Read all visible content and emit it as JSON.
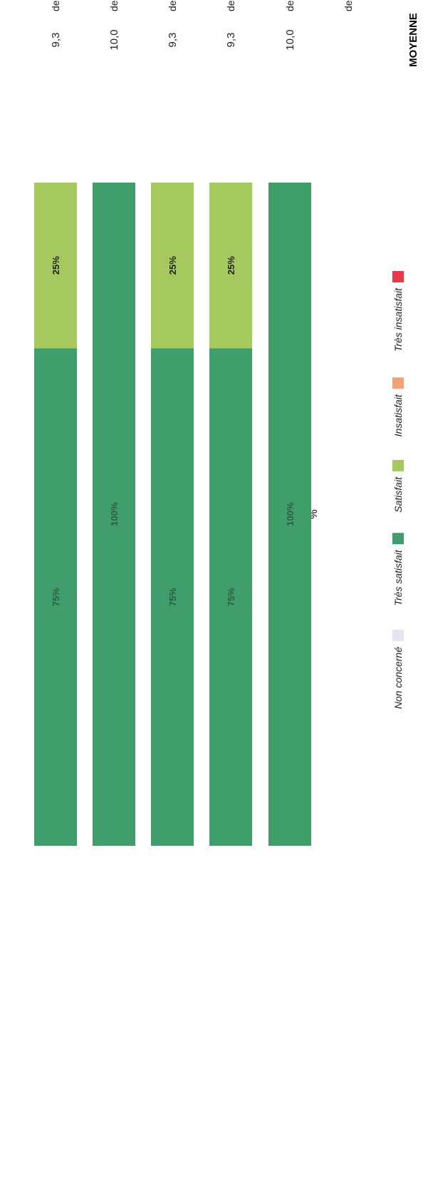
{
  "chart_data": {
    "type": "bar",
    "orientation": "stacked-horizontal",
    "title": "%",
    "value_header": "MOYENNE",
    "categories": [
      "des documents, outils et supports utilisés",
      "des activités proposées (mise en situation, etc.)",
      "de la dynamique de groupe",
      "de la durée de la formation",
      "de la qualité des échanges entre participants",
      "de l'aide à l'utilisation des outils numériques"
    ],
    "averages": [
      "9,3",
      "10,0",
      "9,3",
      "9,3",
      "10,0",
      ""
    ],
    "series": [
      {
        "name": "Très insatisfait",
        "color": "#e8394b",
        "values": [
          0,
          0,
          0,
          0,
          0,
          0
        ]
      },
      {
        "name": "Insatisfait",
        "color": "#f2a27a",
        "values": [
          0,
          0,
          0,
          0,
          0,
          0
        ]
      },
      {
        "name": "Satisfait",
        "color": "#a6c95f",
        "values": [
          25,
          0,
          25,
          25,
          0,
          0
        ]
      },
      {
        "name": "Très satisfait",
        "color": "#3f9e6c",
        "values": [
          75,
          100,
          75,
          75,
          100,
          0
        ]
      },
      {
        "name": "Non concerné",
        "color": "#e4e4f2",
        "values": [
          0,
          0,
          0,
          0,
          0,
          0
        ]
      }
    ],
    "value_labels": [
      "25%",
      "75%",
      "100%",
      "25%",
      "75%",
      "25%",
      "75%",
      "100%"
    ],
    "xlim": [
      0,
      100
    ],
    "legend_position": "bottom",
    "grid": false
  }
}
